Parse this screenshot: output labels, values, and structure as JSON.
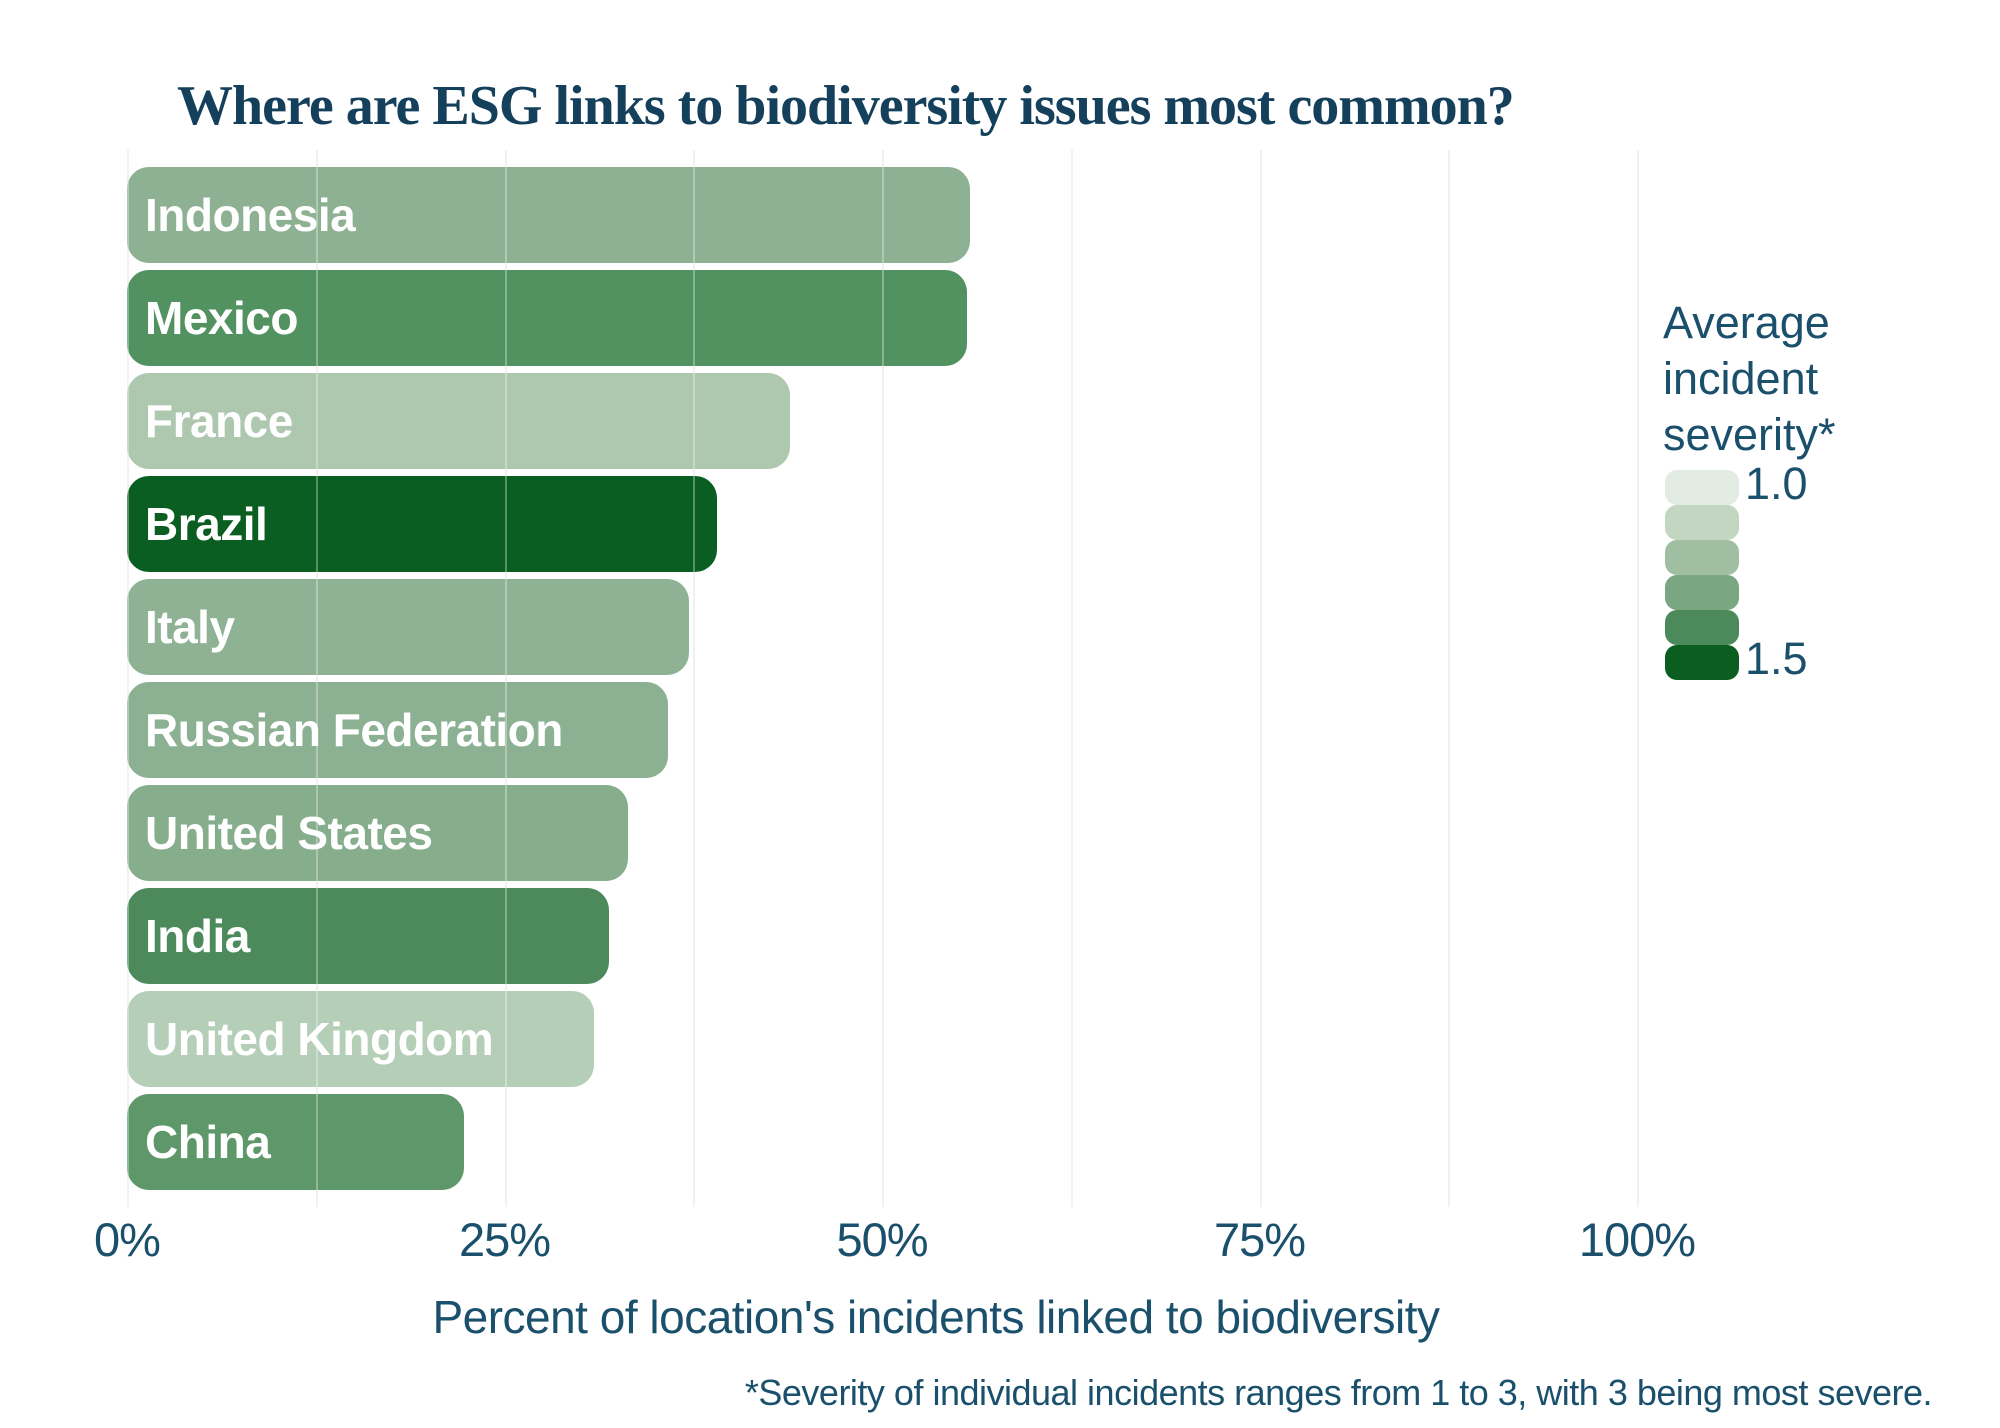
{
  "title": "Where are ESG links to biodiversity issues most common?",
  "chart_data": {
    "type": "bar",
    "orientation": "horizontal",
    "title": "Where are ESG links to biodiversity issues most common?",
    "categories": [
      "Indonesia",
      "Mexico",
      "France",
      "Brazil",
      "Italy",
      "Russian Federation",
      "United States",
      "India",
      "United Kingdom",
      "China"
    ],
    "values": [
      55.8,
      55.6,
      43.9,
      39.1,
      37.2,
      35.8,
      33.2,
      31.9,
      30.9,
      22.3
    ],
    "bar_colors": [
      "#8DB192",
      "#529160",
      "#AEC8B0",
      "#0B5E21",
      "#8FB294",
      "#8CB092",
      "#86AD8C",
      "#4C8A5B",
      "#B5CEB7",
      "#5E9769"
    ],
    "xlabel": "Percent of location's incidents linked to biodiversity",
    "x_ticks": [
      "0%",
      "25%",
      "50%",
      "75%",
      "100%"
    ],
    "x_tick_values": [
      0,
      25,
      50,
      75,
      100
    ],
    "xlim": [
      0,
      100
    ],
    "gridline_step_pct": 12.5,
    "grid": true,
    "legend_position": "right",
    "legend": {
      "title_lines": [
        "Average",
        "incident",
        "severity*"
      ],
      "min_label": "1.0",
      "max_label": "1.5",
      "swatch_colors": [
        "#E3ECE3",
        "#C2D6C2",
        "#A0BFA2",
        "#7AA782",
        "#4C8A5B",
        "#0B5E20"
      ]
    }
  },
  "footnote": "*Severity of individual incidents ranges from 1 to 3, with 3 being most severe.",
  "colors": {
    "title_text": "#14405C",
    "body_text": "#1A506C",
    "gridline": "#EAEAEA",
    "bar_label_text": "#FFFFFF",
    "background": "#FFFFFF"
  }
}
